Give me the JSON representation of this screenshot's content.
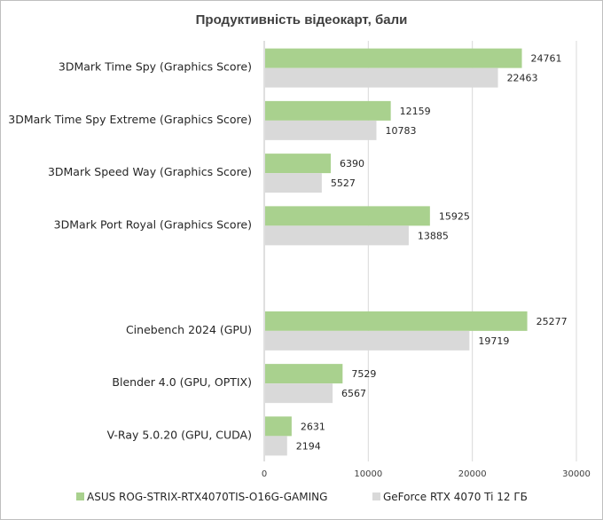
{
  "chart_data": {
    "type": "bar",
    "orientation": "horizontal",
    "title": "Продуктивність відеокарт, бали",
    "xlim": [
      0,
      30000
    ],
    "x_ticks": [
      "0",
      "10000",
      "20000",
      "30000"
    ],
    "grid": true,
    "legend_position": "bottom",
    "categories": [
      "3DMark Time Spy (Graphics Score)",
      "3DMark Time Spy Extreme (Graphics Score)",
      "3DMark Speed Way (Graphics Score)",
      "3DMark Port Royal (Graphics Score)",
      "",
      "Cinebench 2024 (GPU)",
      "Blender 4.0 (GPU, OPTIX)",
      "V-Ray 5.0.20 (GPU, CUDA)"
    ],
    "series": [
      {
        "name": "ASUS ROG-STRIX-RTX4070TIS-O16G-GAMING",
        "color": "#a9d18e",
        "values": [
          24761,
          12159,
          6390,
          15925,
          null,
          25277,
          7529,
          2631
        ]
      },
      {
        "name": "GeForce RTX 4070 Ti 12 ГБ",
        "color": "#d9d9d9",
        "values": [
          22463,
          10783,
          5527,
          13885,
          null,
          19719,
          6567,
          2194
        ]
      }
    ]
  }
}
